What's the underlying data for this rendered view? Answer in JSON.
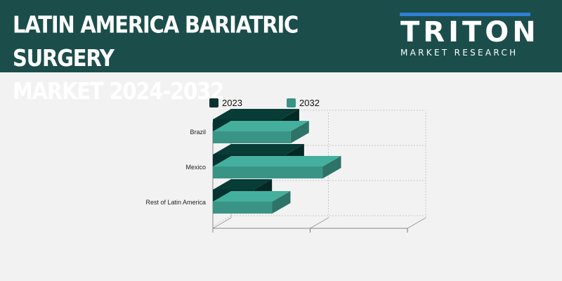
{
  "header": {
    "title_line1": "LATIN AMERICA BARIATRIC SURGERY",
    "title_line2": "MARKET 2024-2032",
    "logo_word": "TRITON",
    "logo_sub": "MARKET RESEARCH"
  },
  "colors": {
    "header_bg": "#1b4d4b",
    "series_2023": "#06332f",
    "series_2032": "#3a9485",
    "logo_accent": "#2f7fd6"
  },
  "chart_data": {
    "type": "bar",
    "orientation": "horizontal",
    "style": "3d",
    "categories": [
      "Brazil",
      "Mexico",
      "Rest of Latin America"
    ],
    "series": [
      {
        "name": "2023",
        "values": [
          0.7,
          0.75,
          0.42
        ]
      },
      {
        "name": "2032",
        "values": [
          0.8,
          1.13,
          0.61
        ]
      }
    ],
    "xlim": [
      0,
      2
    ],
    "grid": true,
    "legend_position": "top"
  }
}
